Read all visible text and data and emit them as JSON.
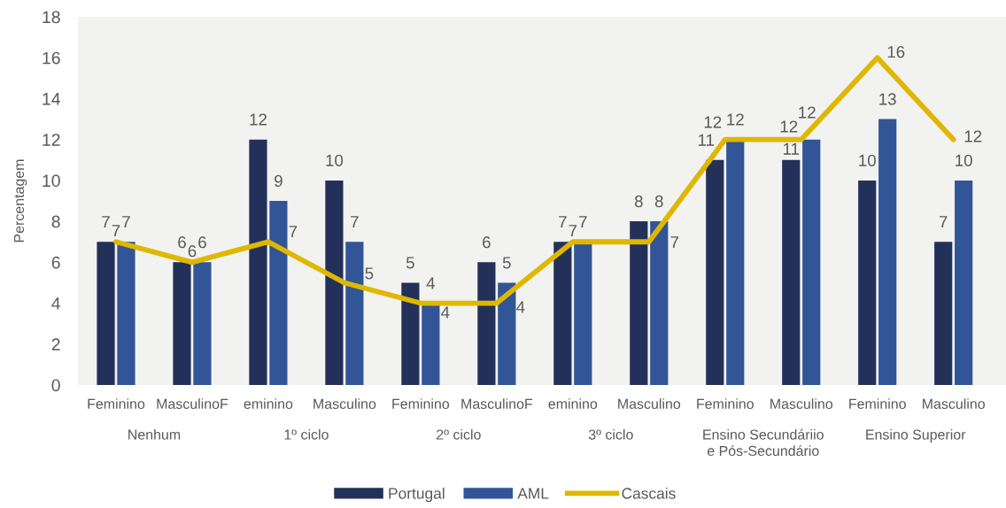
{
  "chart_data": {
    "type": "bar",
    "ylabel": "Percentagem",
    "categories": [
      "Feminino",
      "MasculinoF",
      "eminino",
      "Masculino",
      "Feminino",
      "MasculinoF",
      "eminino",
      "Masculino",
      "Feminino",
      "Masculino",
      "Feminino",
      "Masculino"
    ],
    "annotations": [
      "Nenhum",
      "1º ciclo",
      "2º ciclo",
      "3º ciclo",
      "Ensino Secundáriio\ne Pós-Secundário",
      "Ensino Superior"
    ],
    "series": [
      {
        "name": "Portugal",
        "color": "#23305a",
        "values": [
          7,
          6,
          12,
          10,
          5,
          6,
          7,
          8,
          11,
          11,
          10,
          7
        ]
      },
      {
        "name": "AML",
        "color": "#315597",
        "values": [
          7,
          6,
          9,
          7,
          4,
          5,
          7,
          8,
          12,
          12,
          13,
          10
        ]
      },
      {
        "name": "Cascais",
        "type": "line",
        "color": "#dfb700",
        "values": [
          7,
          6,
          7,
          5,
          4,
          4,
          7,
          7,
          12,
          12,
          16,
          12
        ]
      }
    ],
    "ylim": [
      0,
      18
    ],
    "yticks": [
      0,
      2,
      4,
      6,
      8,
      10,
      12,
      14,
      16,
      18
    ],
    "data_labels": true,
    "legend": "bottom"
  }
}
